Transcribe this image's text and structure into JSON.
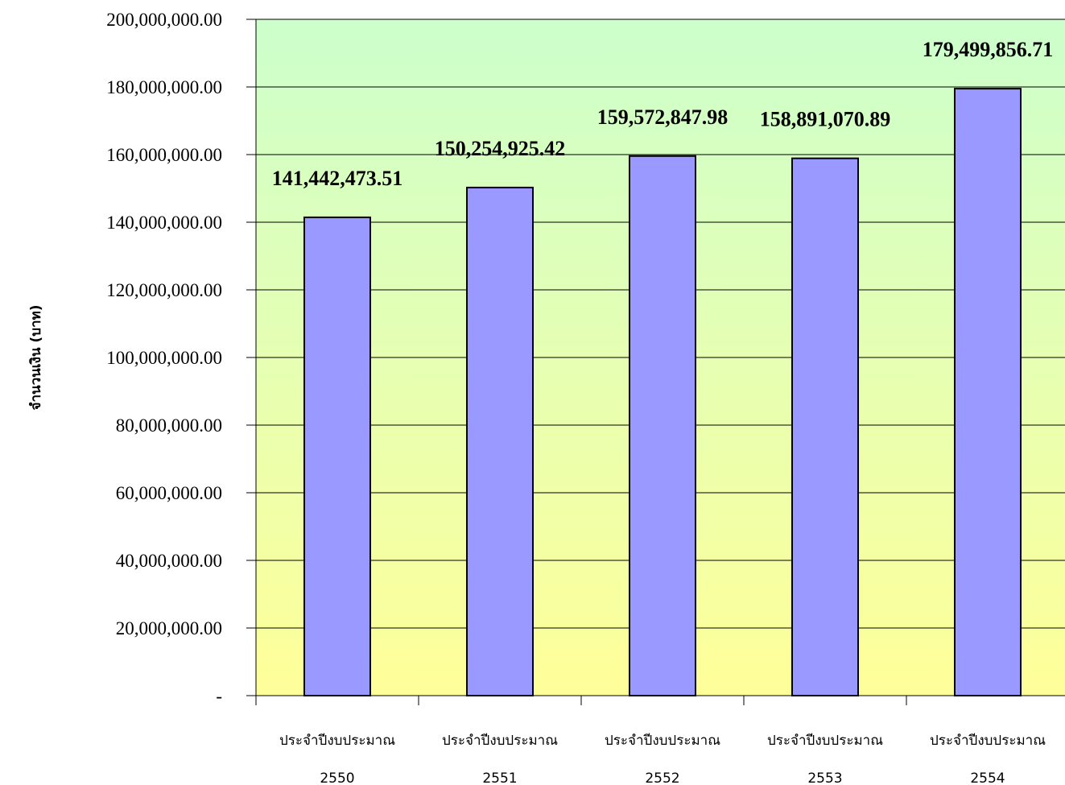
{
  "chart_data": {
    "type": "bar",
    "title": "",
    "xlabel": "",
    "ylabel": "จำนวนเงิน (บาท)",
    "ylim": [
      0,
      200000000
    ],
    "yticks": [
      {
        "value": 0,
        "label": "-"
      },
      {
        "value": 20000000,
        "label": "20,000,000.00"
      },
      {
        "value": 40000000,
        "label": "40,000,000.00"
      },
      {
        "value": 60000000,
        "label": "60,000,000.00"
      },
      {
        "value": 80000000,
        "label": "80,000,000.00"
      },
      {
        "value": 100000000,
        "label": "100,000,000.00"
      },
      {
        "value": 120000000,
        "label": "120,000,000.00"
      },
      {
        "value": 140000000,
        "label": "140,000,000.00"
      },
      {
        "value": 160000000,
        "label": "160,000,000.00"
      },
      {
        "value": 180000000,
        "label": "180,000,000.00"
      },
      {
        "value": 200000000,
        "label": "200,000,000.00"
      }
    ],
    "categories": [
      {
        "line1": "ประจำปีงบประมาณ",
        "line2": "2550"
      },
      {
        "line1": "ประจำปีงบประมาณ",
        "line2": "2551"
      },
      {
        "line1": "ประจำปีงบประมาณ",
        "line2": "2552"
      },
      {
        "line1": "ประจำปีงบประมาณ",
        "line2": "2553"
      },
      {
        "line1": "ประจำปีงบประมาณ",
        "line2": "2554"
      }
    ],
    "values": [
      141442473.51,
      150254925.42,
      159572847.98,
      158891070.89,
      179499856.71
    ],
    "data_labels": [
      "141,442,473.51",
      "150,254,925.42",
      "159,572,847.98",
      "158,891,070.89",
      "179,499,856.71"
    ],
    "grid": true,
    "legend": "none",
    "colors": {
      "bar_fill": "#9999ff",
      "bar_stroke": "#000000",
      "plot_top": "#ccffcc",
      "plot_bottom": "#ffff99",
      "gridline": "#000000"
    }
  }
}
